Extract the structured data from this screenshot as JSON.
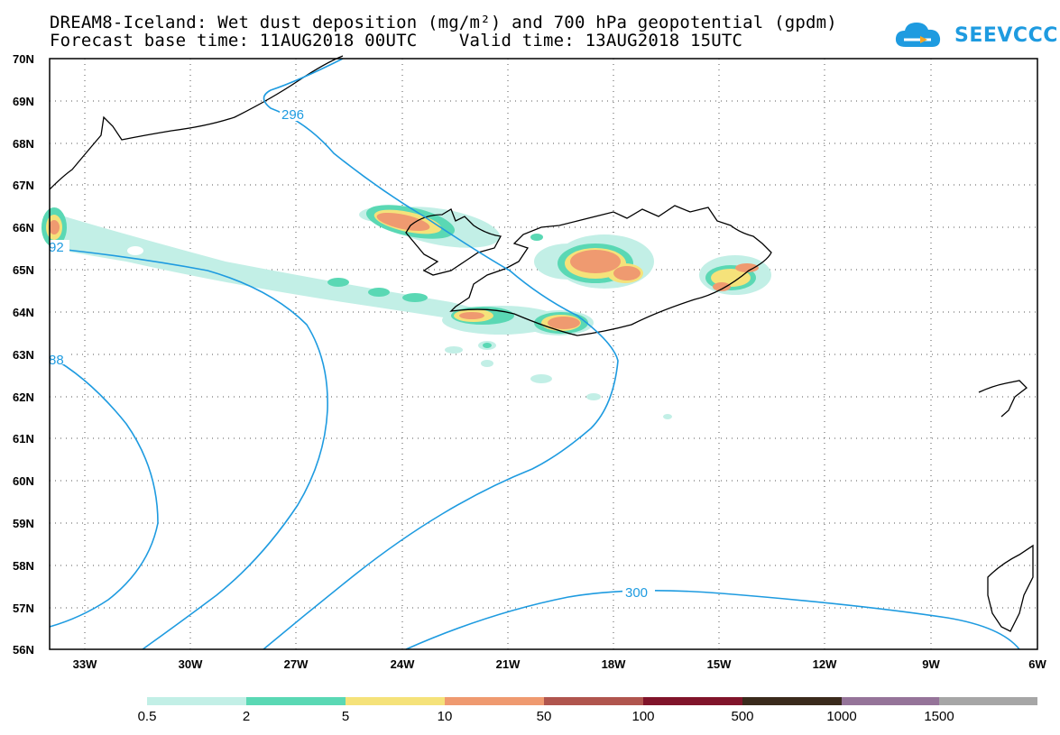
{
  "header": {
    "title_line1": "DREAM8-Iceland: Wet dust deposition (mg/m²) and 700 hPa geopotential (gpdm)",
    "title_line2": "Forecast base time: 11AUG2018 00UTC    Valid time: 13AUG2018 15UTC"
  },
  "logo": {
    "text": "SEEVCCC",
    "color": "#1e9be0"
  },
  "map": {
    "lat_labels": [
      "70N",
      "69N",
      "68N",
      "67N",
      "66N",
      "65N",
      "64N",
      "63N",
      "62N",
      "61N",
      "60N",
      "59N",
      "58N",
      "57N",
      "56N"
    ],
    "lon_labels": [
      "33W",
      "30W",
      "27W",
      "24W",
      "21W",
      "18W",
      "15W",
      "12W",
      "9W",
      "6W"
    ],
    "contour_labels": [
      "296",
      "92",
      "88",
      "300"
    ],
    "contour_color": "#1e9be0"
  },
  "legend": {
    "colors": [
      "#c2efe6",
      "#5ad8b4",
      "#f5e27a",
      "#ef9a70",
      "#b0554e",
      "#80142a",
      "#3a2a1c",
      "#957499",
      "#a6a6a6"
    ],
    "labels": [
      "0.5",
      "2",
      "5",
      "10",
      "50",
      "100",
      "500",
      "1000",
      "1500"
    ]
  }
}
